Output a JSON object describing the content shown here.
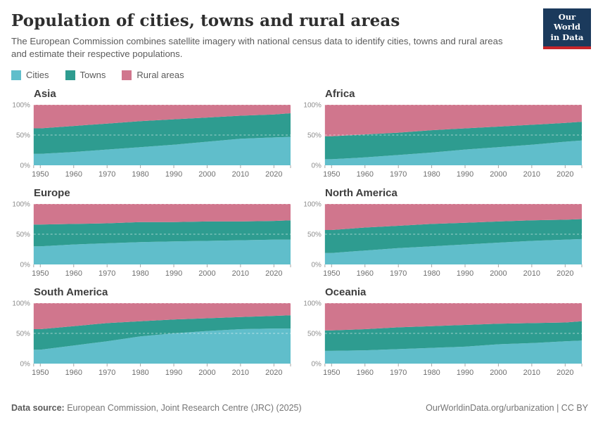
{
  "header": {
    "title": "Population of cities, towns and rural areas",
    "subtitle": "The European Commission combines satellite imagery with national census data to identify cities, towns and rural areas and estimate their respective populations.",
    "logo": {
      "line1": "Our World",
      "line2": "in Data",
      "bg_color": "#1B3A5C",
      "bar_color": "#C7252A"
    }
  },
  "palette": {
    "Cities": "#60BECB",
    "Towns": "#2E9C90",
    "Rural areas": "#D0768D"
  },
  "legend": {
    "items": [
      {
        "label": "Cities"
      },
      {
        "label": "Towns"
      },
      {
        "label": "Rural areas"
      }
    ]
  },
  "axes": {
    "x_domain": [
      1948,
      2025
    ],
    "x_ticks": [
      1950,
      1960,
      1970,
      1980,
      1990,
      2000,
      2010,
      2020
    ],
    "y_domain": [
      0,
      100
    ],
    "y_ticks": [
      {
        "value": 0,
        "label": "0%"
      },
      {
        "value": 50,
        "label": "50%"
      },
      {
        "value": 100,
        "label": "100%"
      }
    ],
    "grid_values": [
      50,
      100
    ],
    "grid_style": "dashed"
  },
  "chart_data": [
    {
      "title": "Asia",
      "type": "area",
      "stacked": true,
      "unit": "%",
      "x": [
        1950,
        1960,
        1970,
        1980,
        1990,
        2000,
        2010,
        2020,
        2025
      ],
      "series": [
        {
          "name": "Cities",
          "values": [
            19,
            22,
            26,
            30,
            34,
            39,
            44,
            46,
            47
          ]
        },
        {
          "name": "Towns",
          "values": [
            42,
            43,
            43,
            43,
            42,
            40,
            38,
            38,
            39
          ]
        },
        {
          "name": "Rural areas",
          "values": [
            39,
            35,
            31,
            27,
            24,
            21,
            18,
            16,
            14
          ]
        }
      ]
    },
    {
      "title": "Africa",
      "type": "area",
      "stacked": true,
      "unit": "%",
      "x": [
        1950,
        1960,
        1970,
        1980,
        1990,
        2000,
        2010,
        2020,
        2025
      ],
      "series": [
        {
          "name": "Cities",
          "values": [
            10,
            13,
            17,
            21,
            26,
            30,
            34,
            39,
            41
          ]
        },
        {
          "name": "Towns",
          "values": [
            38,
            38,
            37,
            37,
            35,
            34,
            33,
            31,
            31
          ]
        },
        {
          "name": "Rural areas",
          "values": [
            52,
            49,
            46,
            42,
            39,
            36,
            33,
            30,
            28
          ]
        }
      ]
    },
    {
      "title": "Europe",
      "type": "area",
      "stacked": true,
      "unit": "%",
      "x": [
        1950,
        1960,
        1970,
        1980,
        1990,
        2000,
        2010,
        2020,
        2025
      ],
      "series": [
        {
          "name": "Cities",
          "values": [
            30,
            33,
            35,
            37,
            38,
            39,
            40,
            41,
            41
          ]
        },
        {
          "name": "Towns",
          "values": [
            36,
            34,
            33,
            33,
            32,
            32,
            31,
            31,
            32
          ]
        },
        {
          "name": "Rural areas",
          "values": [
            34,
            33,
            32,
            30,
            30,
            29,
            29,
            28,
            27
          ]
        }
      ]
    },
    {
      "title": "North America",
      "type": "area",
      "stacked": true,
      "unit": "%",
      "x": [
        1950,
        1960,
        1970,
        1980,
        1990,
        2000,
        2010,
        2020,
        2025
      ],
      "series": [
        {
          "name": "Cities",
          "values": [
            19,
            23,
            27,
            30,
            33,
            36,
            39,
            41,
            42
          ]
        },
        {
          "name": "Towns",
          "values": [
            38,
            38,
            37,
            37,
            36,
            35,
            34,
            33,
            33
          ]
        },
        {
          "name": "Rural areas",
          "values": [
            43,
            39,
            36,
            33,
            31,
            29,
            27,
            26,
            25
          ]
        }
      ]
    },
    {
      "title": "South America",
      "type": "area",
      "stacked": true,
      "unit": "%",
      "x": [
        1950,
        1960,
        1970,
        1980,
        1990,
        2000,
        2010,
        2020,
        2025
      ],
      "series": [
        {
          "name": "Cities",
          "values": [
            23,
            30,
            37,
            45,
            50,
            54,
            57,
            58,
            58
          ]
        },
        {
          "name": "Towns",
          "values": [
            34,
            32,
            30,
            25,
            23,
            21,
            20,
            21,
            22
          ]
        },
        {
          "name": "Rural areas",
          "values": [
            43,
            38,
            33,
            30,
            27,
            25,
            23,
            21,
            20
          ]
        }
      ]
    },
    {
      "title": "Oceania",
      "type": "area",
      "stacked": true,
      "unit": "%",
      "x": [
        1950,
        1960,
        1970,
        1980,
        1990,
        2000,
        2010,
        2020,
        2025
      ],
      "series": [
        {
          "name": "Cities",
          "values": [
            21,
            22,
            24,
            26,
            28,
            32,
            34,
            37,
            38
          ]
        },
        {
          "name": "Towns",
          "values": [
            34,
            35,
            36,
            36,
            36,
            34,
            33,
            31,
            32
          ]
        },
        {
          "name": "Rural areas",
          "values": [
            45,
            43,
            40,
            38,
            36,
            34,
            33,
            32,
            30
          ]
        }
      ]
    }
  ],
  "footer": {
    "source_label": "Data source:",
    "source_text": " European Commission, Joint Research Centre (JRC) (2025)",
    "right_text": "OurWorldinData.org/urbanization | CC BY"
  }
}
